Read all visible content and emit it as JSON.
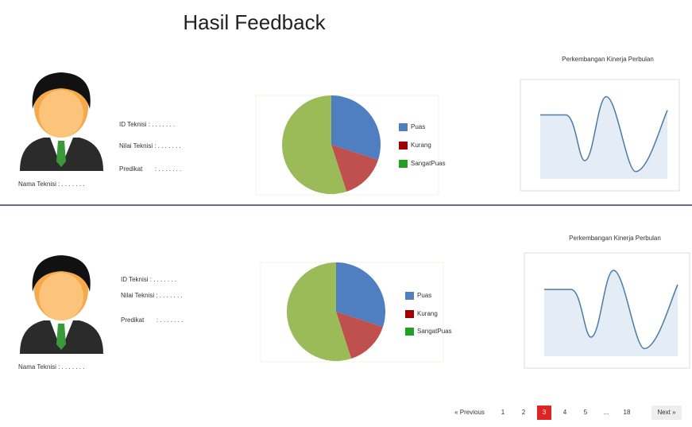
{
  "title": "Hasil Feedback",
  "cards": [
    {
      "name": "Nama Teknisi : . . . . . . .",
      "fields": [
        "ID Teknisi : . . . . . . .",
        "Nilai Teknisi : . . . . . . .",
        "Predikat       : . . . . . . ."
      ],
      "pie": {
        "categories": [
          "Puas",
          "Kurang",
          "SangatPuas"
        ],
        "values": [
          30,
          15,
          55
        ],
        "colors": [
          "#4f7fc0",
          "#c0504d",
          "#9bbb59"
        ],
        "legend_colors": [
          "#4f7fc0",
          "#a00000",
          "#22a022"
        ]
      },
      "line_title": "Perkembangan Kinerja Perbulan"
    },
    {
      "name": "Nama Teknisi : . . . . . . .",
      "fields": [
        "ID Teknisi : . . . . . . .",
        "Nilai Teknisi : . . . . . . .",
        "Predikat       : . . . . . . ."
      ],
      "pie": {
        "categories": [
          "Puas",
          "Kurang",
          "SangatPuas"
        ],
        "values": [
          30,
          15,
          55
        ],
        "colors": [
          "#4f7fc0",
          "#c0504d",
          "#9bbb59"
        ],
        "legend_colors": [
          "#4f7fc0",
          "#a00000",
          "#22a022"
        ]
      },
      "line_title": "Perkembangan Kinerja Perbulan"
    }
  ],
  "pagination": {
    "items": [
      "« Previous",
      "1",
      "2",
      "3",
      "4",
      "5",
      "...",
      "18",
      "Next »"
    ],
    "active": 3
  }
}
